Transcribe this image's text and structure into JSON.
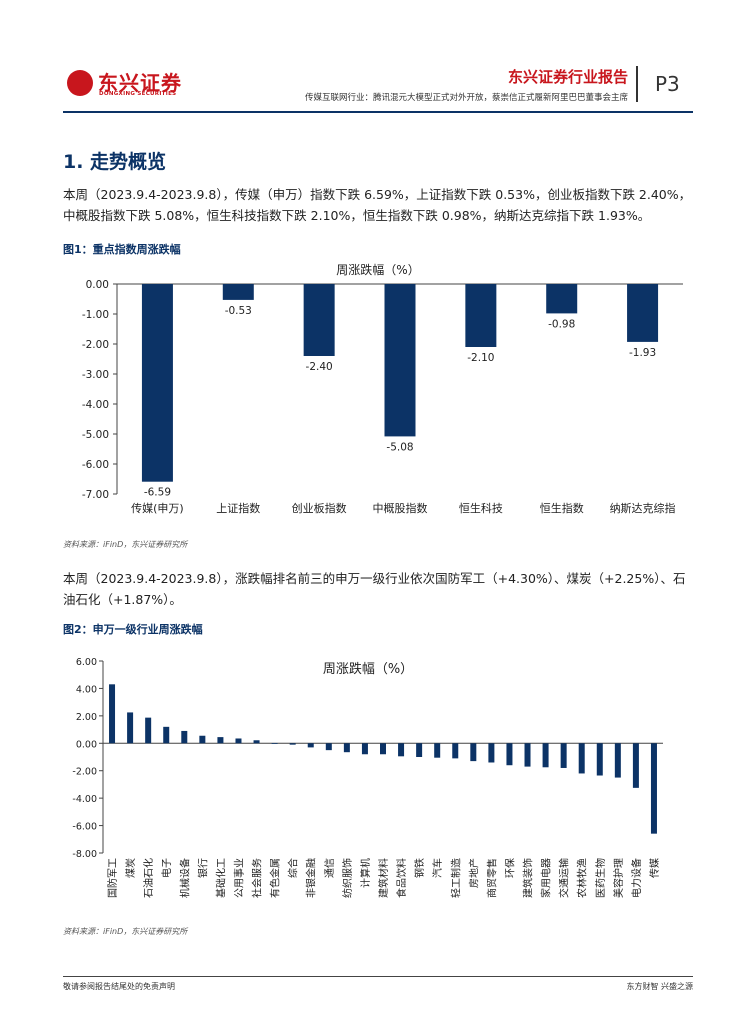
{
  "header": {
    "logo_text": "东兴证券",
    "logo_sub": "DONGXING SECURITIES",
    "report_type": "东兴证券行业报告",
    "subtitle": "传媒互联网行业：腾讯混元大模型正式对外开放，蔡崇信正式履新阿里巴巴董事会主席",
    "page": "P3"
  },
  "section_title": "1. 走势概览",
  "paragraph1": "本周（2023.9.4-2023.9.8），传媒（申万）指数下跌 6.59%，上证指数下跌 0.53%，创业板指数下跌 2.40%，中概股指数下跌 5.08%，恒生科技指数下跌 2.10%，恒生指数下跌 0.98%，纳斯达克综指下跌 1.93%。",
  "figure1": {
    "caption": "图1：重点指数周涨跌幅",
    "source": "资料来源：iFinD，东兴证券研究所"
  },
  "paragraph2": "本周（2023.9.4-2023.9.8），涨跌幅排名前三的申万一级行业依次国防军工（+4.30%）、煤炭（+2.25%）、石油石化（+1.87%）。",
  "figure2": {
    "caption": "图2：申万一级行业周涨跌幅",
    "source": "资料来源：iFinD，东兴证券研究所"
  },
  "footer": {
    "left": "敬请参阅报告结尾处的免责声明",
    "right": "东方财智 兴盛之源"
  },
  "colors": {
    "bar": "#0c3366",
    "accent_red": "#c8161d"
  },
  "chart_data": [
    {
      "type": "bar",
      "title": "周涨跌幅（%）",
      "categories": [
        "传媒(申万)",
        "上证指数",
        "创业板指数",
        "中概股指数",
        "恒生科技",
        "恒生指数",
        "纳斯达克综指"
      ],
      "values": [
        -6.59,
        -0.53,
        -2.4,
        -5.08,
        -2.1,
        -0.98,
        -1.93
      ],
      "value_labels": [
        "-6.59",
        "-0.53",
        "-2.40",
        "-5.08",
        "-2.10",
        "-0.98",
        "-1.93"
      ],
      "ylim": [
        -7,
        0
      ],
      "yticks": [
        "0.00",
        "-1.00",
        "-2.00",
        "-3.00",
        "-4.00",
        "-5.00",
        "-6.00",
        "-7.00"
      ]
    },
    {
      "type": "bar",
      "title": "周涨跌幅（%）",
      "categories": [
        "国防军工",
        "煤炭",
        "石油石化",
        "电子",
        "机械设备",
        "银行",
        "基础化工",
        "公用事业",
        "社会服务",
        "有色金属",
        "综合",
        "非银金融",
        "通信",
        "纺织服饰",
        "计算机",
        "建筑材料",
        "食品饮料",
        "钢铁",
        "汽车",
        "轻工制造",
        "房地产",
        "商贸零售",
        "环保",
        "建筑装饰",
        "家用电器",
        "交通运输",
        "农林牧渔",
        "医药生物",
        "美容护理",
        "电力设备",
        "传媒"
      ],
      "values": [
        4.3,
        2.25,
        1.87,
        1.2,
        0.9,
        0.55,
        0.45,
        0.35,
        0.22,
        0.02,
        -0.1,
        -0.3,
        -0.5,
        -0.65,
        -0.8,
        -0.8,
        -0.95,
        -1.0,
        -1.05,
        -1.1,
        -1.3,
        -1.4,
        -1.6,
        -1.7,
        -1.75,
        -1.8,
        -2.2,
        -2.35,
        -2.5,
        -3.25,
        -6.59
      ],
      "ylim": [
        -8,
        6
      ],
      "yticks": [
        "6.00",
        "4.00",
        "2.00",
        "0.00",
        "-2.00",
        "-4.00",
        "-6.00",
        "-8.00"
      ]
    }
  ]
}
